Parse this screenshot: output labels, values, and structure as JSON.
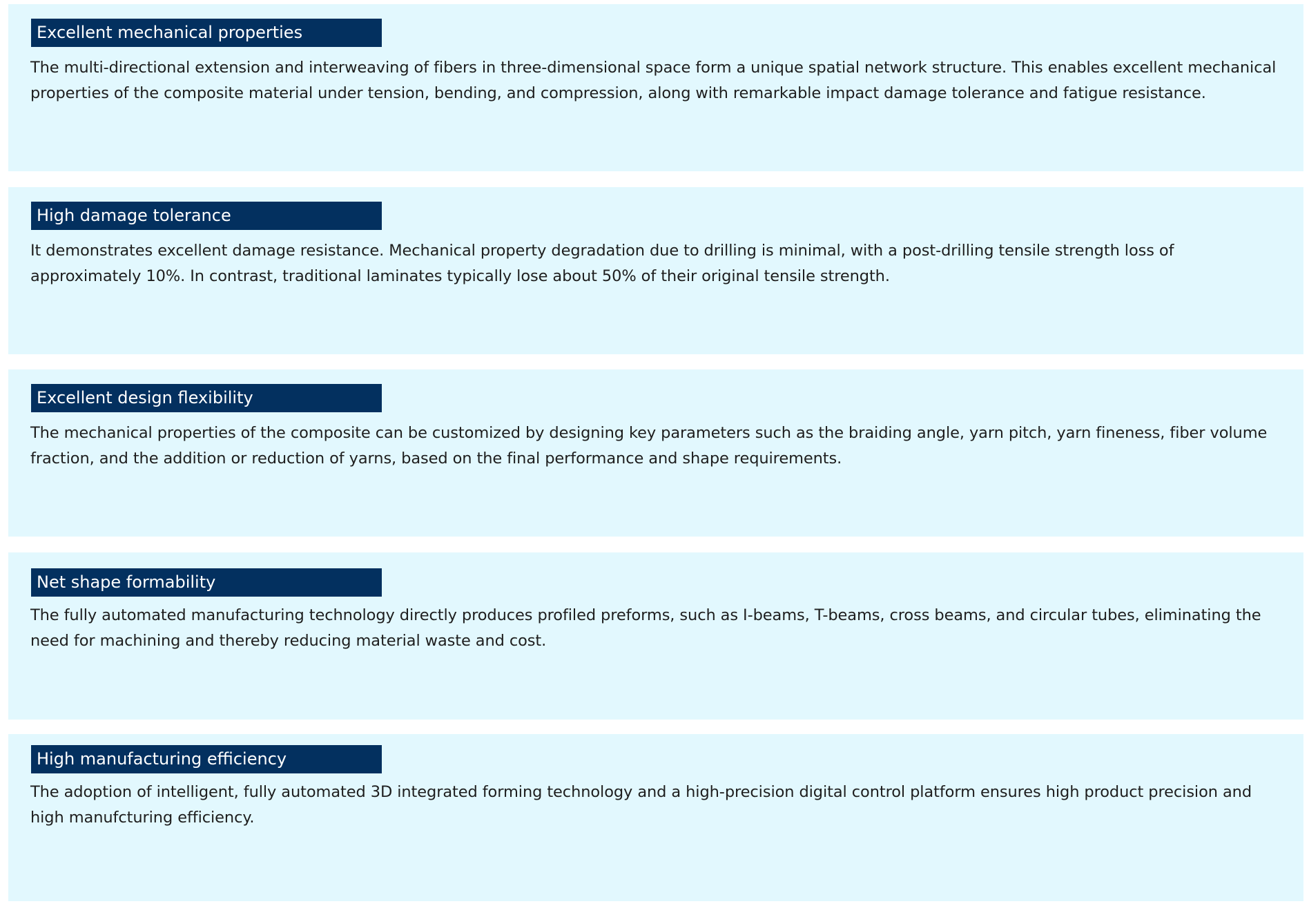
{
  "colors": {
    "card_background": "#e2f8fe",
    "heading_background": "#03305f",
    "heading_text": "#ffffff",
    "body_text": "#1e1e1e"
  },
  "sections": [
    {
      "title": "Excellent mechanical properties",
      "text": "The multi-directional extension and interweaving of fibers in three-dimensional space form a unique spatial network structure. This enables excellent mechanical properties of the composite material under tension, bending, and compression, along with remarkable impact damage tolerance and fatigue resistance."
    },
    {
      "title": "High damage tolerance",
      "text": "It demonstrates excellent damage resistance. Mechanical property degradation due to drilling is minimal, with a post-drilling tensile strength loss of approximately 10%. In contrast, traditional laminates typically lose about 50% of their original tensile strength."
    },
    {
      "title": "Excellent design flexibility",
      "text": "The mechanical properties of the composite can be customized by designing key parameters such as the braiding angle, yarn pitch, yarn fineness, fiber volume fraction, and the addition or reduction of yarns, based on the final performance and shape requirements."
    },
    {
      "title": "Net shape formability",
      "text": "The fully automated manufacturing technology directly produces profiled preforms, such as I-beams, T-beams, cross beams, and circular tubes, eliminating the need for machining and thereby reducing material waste and cost."
    },
    {
      "title": "High manufacturing efficiency",
      "text": "The adoption of intelligent, fully automated 3D integrated forming technology and a high-precision digital control platform ensures high product precision and high manufcturing efficiency."
    }
  ]
}
